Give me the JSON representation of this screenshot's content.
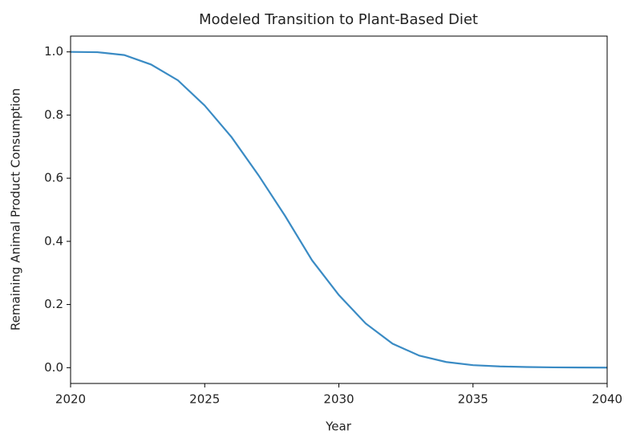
{
  "chart_data": {
    "type": "line",
    "title": "Modeled Transition to Plant-Based Diet",
    "x_label": "Year",
    "y_label": "Remaining Animal Product Consumption",
    "x": [
      2020,
      2021,
      2022,
      2023,
      2024,
      2025,
      2026,
      2027,
      2028,
      2029,
      2030,
      2031,
      2032,
      2033,
      2034,
      2035,
      2036,
      2037,
      2038,
      2039,
      2040
    ],
    "values": [
      1.0,
      0.999,
      0.99,
      0.96,
      0.91,
      0.83,
      0.73,
      0.61,
      0.48,
      0.34,
      0.23,
      0.14,
      0.076,
      0.038,
      0.018,
      0.008,
      0.004,
      0.002,
      0.001,
      0.0005,
      0.0002
    ],
    "color": "#3a8bc4",
    "xlim": [
      2020,
      2040
    ],
    "xticks": [
      2020,
      2025,
      2030,
      2035,
      2040
    ],
    "ylim": [
      -0.05,
      1.05
    ],
    "yticks": [
      {
        "value": 0,
        "label": "0.0"
      },
      0.2,
      0.4,
      0.6,
      0.8,
      {
        "value": 1,
        "label": "1.0"
      }
    ],
    "grid": false
  }
}
